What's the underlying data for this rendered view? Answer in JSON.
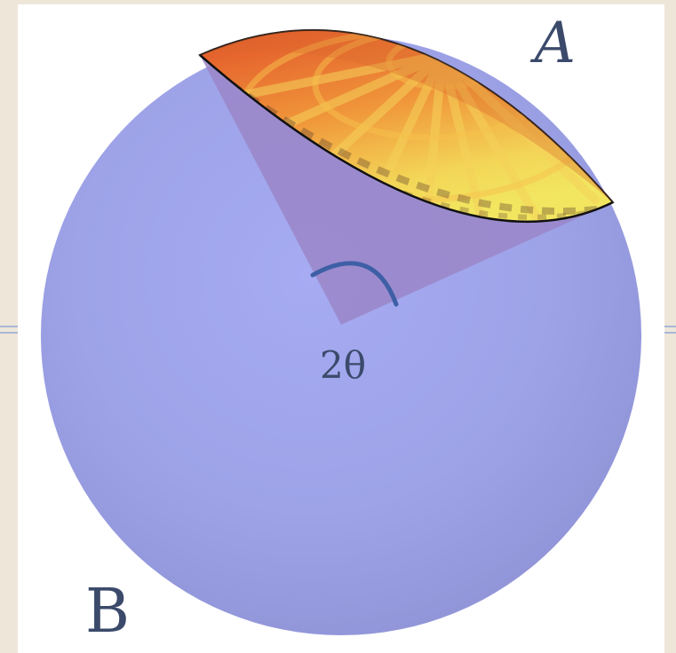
{
  "labels": {
    "region_a": "A",
    "region_b": "B",
    "angle": "2θ"
  },
  "colors": {
    "page_background": "#efe6da",
    "panel_background": "#ffffff",
    "sphere_fill": "#9ea3e8",
    "cone_fill": "#9a86c8",
    "cap_orange": "#ea7a2c",
    "cap_yellow": "#f2e25e",
    "angle_arc": "#3e5fa5",
    "label_text": "#3b4a6b"
  }
}
